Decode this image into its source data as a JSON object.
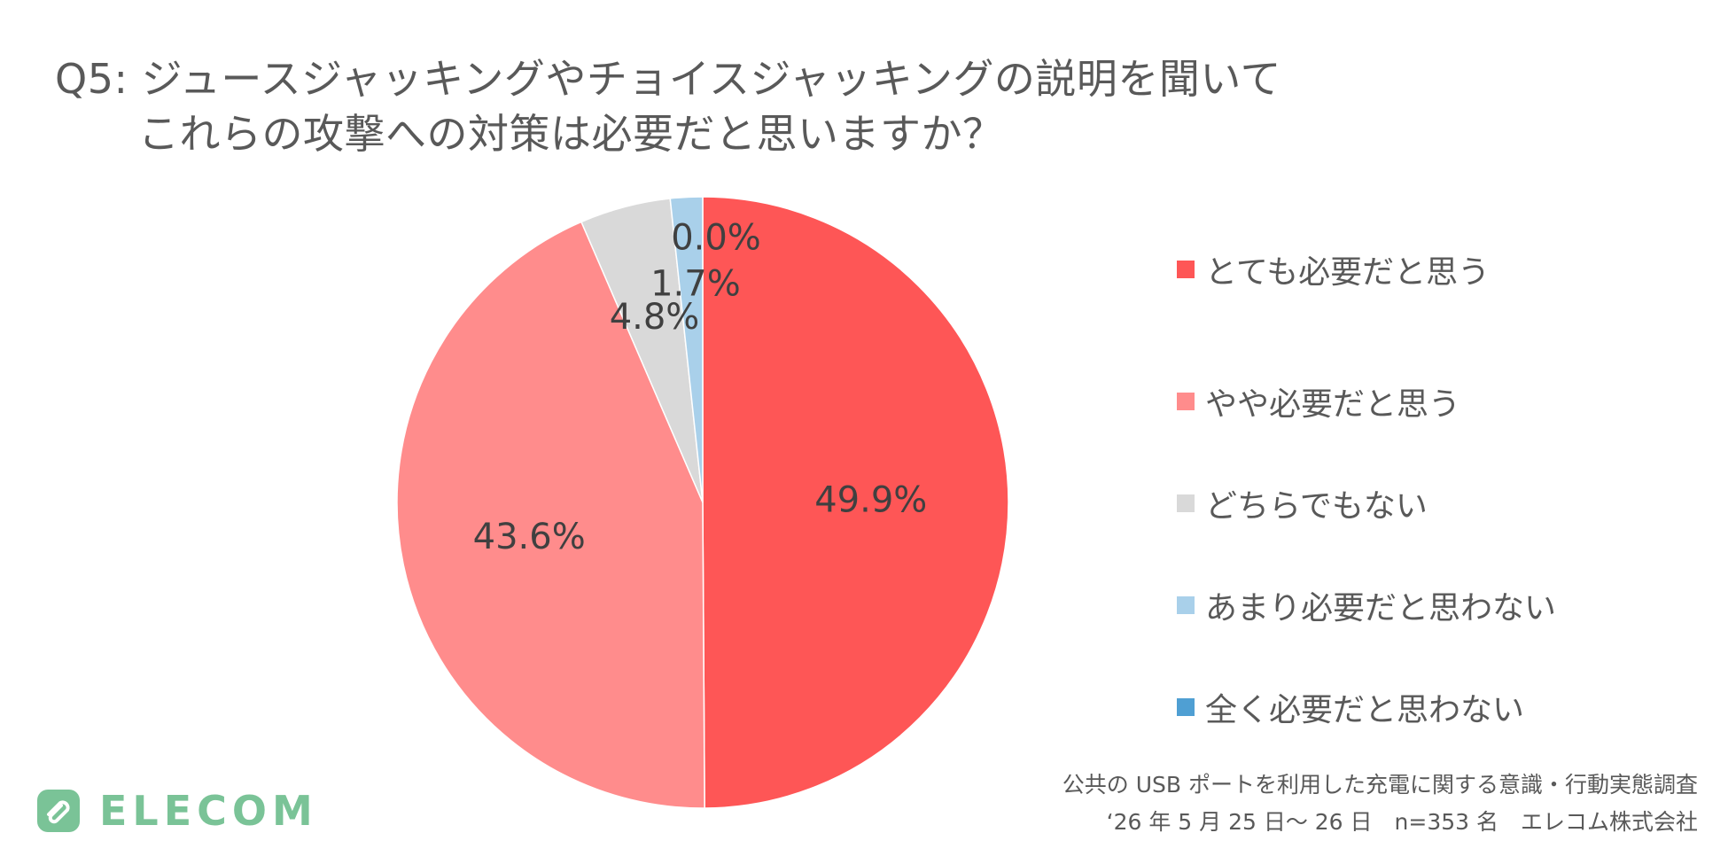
{
  "title": {
    "line1": "Q5: ジュースジャッキングやチョイスジャッキングの説明を聞いて",
    "line2": "これらの攻撃への対策は必要だと思いますか？"
  },
  "chart_data": {
    "type": "pie",
    "title": "Q5: ジュースジャッキングやチョイスジャッキングの説明を聞いて これらの攻撃への対策は必要だと思いますか？",
    "categories": [
      "とても必要だと思う",
      "やや必要だと思う",
      "どちらでもない",
      "あまり必要だと思わない",
      "全く必要だと思わない"
    ],
    "values": [
      49.9,
      43.6,
      4.8,
      1.7,
      0.0
    ],
    "data_labels": [
      "49.9%",
      "43.6%",
      "4.8%",
      "1.7%",
      "0.0%"
    ],
    "colors": [
      "#fe5656",
      "#ff8c8c",
      "#d9d9d9",
      "#a9d0ea",
      "#4f9fd3"
    ],
    "legend_position": "right"
  },
  "footnote": {
    "line1": "公共の USB ポートを利用した充電に関する意識・行動実態調査",
    "line2": "‘26 年 5 月 25 日〜 26 日　n=353 名　エレコム株式会社"
  },
  "logo": {
    "text": "ELECOM",
    "color": "#7ac397"
  }
}
